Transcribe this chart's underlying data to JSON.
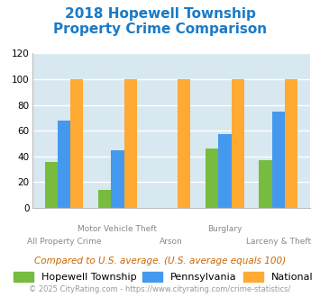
{
  "title_line1": "2018 Hopewell Township",
  "title_line2": "Property Crime Comparison",
  "title_color": "#1a7ac7",
  "groups": [
    "All Property Crime",
    "Motor Vehicle Theft",
    "Arson",
    "Burglary",
    "Larceny & Theft"
  ],
  "top_labels": [
    "",
    "Motor Vehicle Theft",
    "",
    "Burglary",
    ""
  ],
  "bottom_labels": [
    "All Property Crime",
    "",
    "Arson",
    "",
    "Larceny & Theft"
  ],
  "hopewell": [
    36,
    14,
    0,
    46,
    37
  ],
  "pennsylvania": [
    68,
    45,
    0,
    57,
    75
  ],
  "national": [
    100,
    100,
    100,
    100,
    100
  ],
  "bar_color_hopewell": "#77bb3f",
  "bar_color_pennsylvania": "#4499ee",
  "bar_color_national": "#ffaa33",
  "ylim": [
    0,
    120
  ],
  "yticks": [
    0,
    20,
    40,
    60,
    80,
    100,
    120
  ],
  "background_color": "#d8e8f0",
  "grid_color": "#ffffff",
  "legend_labels": [
    "Hopewell Township",
    "Pennsylvania",
    "National"
  ],
  "footnote1": "Compared to U.S. average. (U.S. average equals 100)",
  "footnote2": "© 2025 CityRating.com - https://www.cityrating.com/crime-statistics/",
  "footnote1_color": "#cc6600",
  "footnote2_color": "#999999",
  "label_color": "#888888"
}
